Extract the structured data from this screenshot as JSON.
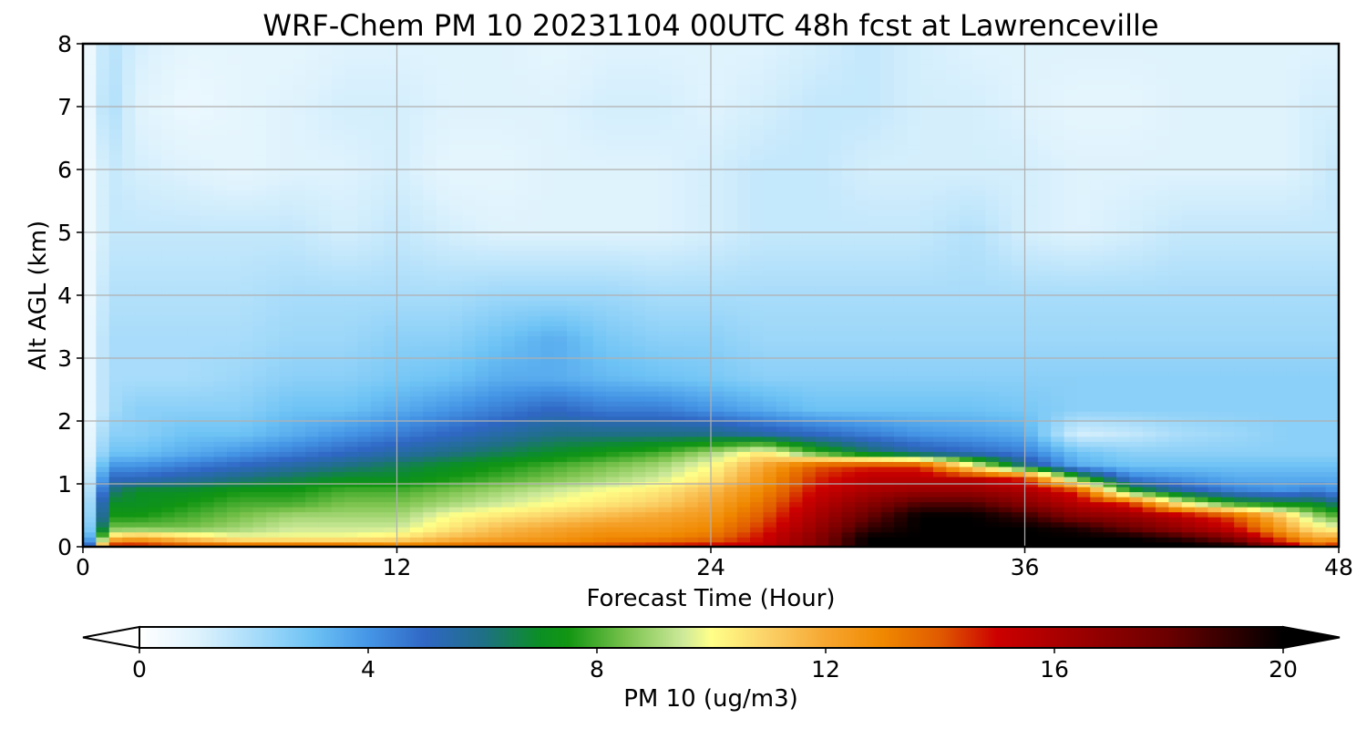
{
  "chart_data": {
    "type": "heatmap",
    "title": "WRF-Chem PM 10  20231104 00UTC 48h fcst at Lawrenceville",
    "xlabel": "Forecast Time (Hour)",
    "ylabel": "Alt AGL (km)",
    "xlim": [
      0,
      48
    ],
    "ylim": [
      0,
      8
    ],
    "xticks": [
      0,
      12,
      24,
      36,
      48
    ],
    "yticks": [
      0,
      1,
      2,
      3,
      4,
      5,
      6,
      7,
      8
    ],
    "grid": true,
    "colorbar": {
      "label": "PM 10  (ug/m3)",
      "range": [
        0,
        20
      ],
      "ticks": [
        0,
        4,
        8,
        12,
        16,
        20
      ],
      "extend": "both",
      "stops": [
        {
          "v": 0,
          "c": "#ffffff"
        },
        {
          "v": 1,
          "c": "#dff3fd"
        },
        {
          "v": 2,
          "c": "#a8dcfa"
        },
        {
          "v": 3,
          "c": "#6ec3f5"
        },
        {
          "v": 4,
          "c": "#4596e6"
        },
        {
          "v": 5,
          "c": "#2f67c4"
        },
        {
          "v": 6,
          "c": "#1f6f86"
        },
        {
          "v": 7,
          "c": "#0b8f24"
        },
        {
          "v": 7.5,
          "c": "#129612"
        },
        {
          "v": 8.5,
          "c": "#79c24c"
        },
        {
          "v": 9.5,
          "c": "#cde99a"
        },
        {
          "v": 10,
          "c": "#ffff88"
        },
        {
          "v": 11,
          "c": "#fbd066"
        },
        {
          "v": 12,
          "c": "#f6a630"
        },
        {
          "v": 13,
          "c": "#f08800"
        },
        {
          "v": 14,
          "c": "#e05a00"
        },
        {
          "v": 15,
          "c": "#cc0000"
        },
        {
          "v": 16,
          "c": "#aa0000"
        },
        {
          "v": 18,
          "c": "#6a0000"
        },
        {
          "v": 20,
          "c": "#000000"
        }
      ]
    },
    "x": [
      0,
      1,
      2,
      4,
      6,
      8,
      10,
      12,
      14,
      16,
      18,
      20,
      22,
      24,
      26,
      28,
      30,
      32,
      34,
      36,
      38,
      40,
      42,
      44,
      46,
      47,
      48
    ],
    "altitudes": [
      0,
      0.05,
      0.15,
      0.3,
      0.5,
      0.7,
      0.9,
      1.1,
      1.3,
      1.5,
      1.8,
      2.2,
      2.7,
      3.3,
      4,
      5,
      6,
      7,
      8
    ],
    "values": [
      [
        2.0,
        15.0,
        16.0,
        16.0,
        16.0,
        16.0,
        16.0,
        16.0,
        16.0,
        16.0,
        16.0,
        16.0,
        16.0,
        16.0,
        16.0,
        17.0,
        20.0,
        20.0,
        20.0,
        20.0,
        20.0,
        20.0,
        20.0,
        20.0,
        18.0,
        16.0,
        16.0
      ],
      [
        1.5,
        14.0,
        14.0,
        13.0,
        12.5,
        12.5,
        12.5,
        12.0,
        12.5,
        13.0,
        13.0,
        13.5,
        14.0,
        14.5,
        15.0,
        17.0,
        20.0,
        20.0,
        20.0,
        20.0,
        20.0,
        20.0,
        20.0,
        19.0,
        15.0,
        13.0,
        14.0
      ],
      [
        1.0,
        11.0,
        12.0,
        11.0,
        10.0,
        10.0,
        10.0,
        10.5,
        11.5,
        12.0,
        12.5,
        13.0,
        13.0,
        13.5,
        15.0,
        17.0,
        20.0,
        20.0,
        20.0,
        20.0,
        20.0,
        20.0,
        19.0,
        17.0,
        13.5,
        12.0,
        12.0
      ],
      [
        0.8,
        8.5,
        8.5,
        8.5,
        9.0,
        9.5,
        9.5,
        9.5,
        10.5,
        11.5,
        12.0,
        12.5,
        12.5,
        13.0,
        14.5,
        16.5,
        19.0,
        20.0,
        20.0,
        20.0,
        19.5,
        18.0,
        16.5,
        15.0,
        12.0,
        10.5,
        10.0
      ],
      [
        0.7,
        7.5,
        7.5,
        8.0,
        8.5,
        9.0,
        9.0,
        9.0,
        10.0,
        10.5,
        11.0,
        11.5,
        12.0,
        12.5,
        14.0,
        16.0,
        18.0,
        20.0,
        20.0,
        19.0,
        17.0,
        16.5,
        15.5,
        14.0,
        11.0,
        9.0,
        8.0
      ],
      [
        0.6,
        7.0,
        7.0,
        7.5,
        8.0,
        8.0,
        8.5,
        8.5,
        9.0,
        9.5,
        10.0,
        10.5,
        11.0,
        12.0,
        13.5,
        15.5,
        17.0,
        18.5,
        18.5,
        17.0,
        15.5,
        14.5,
        10.0,
        7.5,
        7.0,
        7.0,
        6.0
      ],
      [
        0.5,
        6.0,
        7.0,
        7.0,
        7.5,
        7.5,
        8.0,
        8.0,
        8.5,
        9.0,
        9.5,
        10.0,
        10.5,
        11.5,
        13.0,
        15.0,
        16.0,
        16.5,
        16.5,
        16.0,
        14.5,
        7.5,
        5.5,
        4.5,
        4.0,
        4.5,
        4.0
      ],
      [
        0.4,
        5.0,
        5.0,
        5.5,
        6.0,
        6.5,
        7.0,
        7.0,
        7.5,
        8.0,
        8.5,
        9.0,
        9.5,
        10.5,
        12.5,
        14.5,
        15.5,
        15.5,
        15.5,
        14.5,
        8.0,
        4.5,
        4.0,
        3.5,
        3.5,
        3.5,
        3.5
      ],
      [
        0.3,
        4.0,
        4.0,
        4.5,
        5.0,
        5.5,
        6.0,
        6.5,
        7.0,
        7.5,
        8.0,
        8.5,
        9.0,
        10.0,
        12.0,
        14.0,
        14.5,
        14.5,
        10.0,
        6.0,
        3.5,
        3.0,
        3.0,
        3.0,
        3.0,
        3.0,
        3.0
      ],
      [
        0.3,
        3.0,
        3.0,
        3.5,
        4.0,
        4.5,
        5.0,
        5.5,
        6.0,
        6.5,
        7.0,
        7.5,
        8.0,
        9.0,
        10.5,
        8.0,
        6.5,
        5.5,
        5.0,
        4.5,
        3.0,
        2.5,
        2.5,
        2.5,
        2.5,
        2.5,
        2.5
      ],
      [
        0.2,
        2.5,
        2.5,
        3.0,
        3.0,
        3.5,
        4.0,
        4.5,
        5.0,
        5.5,
        6.0,
        6.0,
        6.0,
        6.0,
        5.5,
        5.0,
        4.5,
        4.0,
        3.8,
        3.5,
        1.2,
        1.5,
        2.0,
        2.2,
        2.5,
        2.5,
        2.5
      ],
      [
        0.2,
        2.0,
        2.5,
        2.5,
        2.5,
        3.0,
        3.0,
        3.5,
        4.0,
        4.5,
        5.0,
        4.5,
        4.5,
        4.0,
        3.5,
        3.0,
        3.0,
        3.0,
        3.0,
        2.8,
        2.5,
        2.5,
        2.5,
        2.5,
        2.5,
        2.5,
        2.5
      ],
      [
        0.2,
        2.0,
        2.0,
        2.0,
        2.2,
        2.5,
        2.5,
        2.8,
        3.0,
        3.5,
        3.5,
        3.2,
        3.0,
        2.8,
        2.5,
        2.5,
        2.5,
        2.5,
        2.5,
        2.5,
        2.5,
        2.5,
        2.5,
        2.5,
        2.5,
        2.5,
        2.5
      ],
      [
        0.2,
        2.0,
        2.0,
        2.0,
        2.0,
        2.2,
        2.2,
        2.5,
        2.5,
        3.0,
        3.5,
        2.8,
        2.5,
        2.5,
        2.2,
        2.2,
        2.2,
        2.2,
        2.2,
        2.2,
        2.2,
        2.2,
        2.2,
        2.2,
        2.2,
        2.2,
        2.2
      ],
      [
        0.2,
        1.8,
        1.8,
        1.8,
        1.8,
        2.0,
        2.0,
        2.0,
        2.0,
        2.2,
        2.2,
        2.2,
        2.0,
        2.0,
        2.0,
        2.0,
        2.0,
        2.0,
        2.0,
        2.0,
        2.0,
        2.0,
        2.0,
        2.0,
        2.0,
        2.0,
        2.0
      ],
      [
        0.2,
        1.5,
        1.5,
        1.5,
        1.5,
        1.5,
        1.2,
        1.5,
        1.2,
        1.0,
        1.0,
        1.0,
        1.0,
        1.2,
        1.5,
        1.5,
        1.5,
        1.5,
        1.8,
        1.2,
        1.0,
        1.2,
        1.5,
        1.5,
        1.5,
        1.5,
        1.5
      ],
      [
        0.2,
        1.5,
        1.2,
        1.0,
        0.8,
        1.0,
        1.0,
        1.2,
        0.8,
        0.8,
        1.0,
        1.0,
        1.0,
        1.2,
        1.5,
        1.5,
        1.2,
        1.2,
        1.2,
        1.2,
        1.0,
        1.0,
        1.0,
        1.0,
        1.0,
        1.2,
        1.5
      ],
      [
        0.2,
        2.0,
        1.0,
        0.6,
        0.8,
        1.0,
        1.2,
        1.2,
        1.0,
        1.0,
        1.0,
        1.2,
        1.2,
        1.0,
        1.2,
        1.5,
        1.5,
        1.2,
        1.2,
        1.0,
        0.8,
        0.8,
        1.0,
        1.0,
        1.0,
        1.2,
        1.2
      ],
      [
        0.2,
        1.8,
        1.2,
        0.8,
        0.8,
        0.8,
        1.0,
        1.0,
        1.0,
        1.0,
        0.8,
        1.0,
        1.0,
        1.0,
        1.0,
        1.2,
        1.5,
        1.2,
        1.0,
        1.0,
        1.0,
        1.0,
        1.0,
        1.0,
        1.0,
        1.0,
        1.0
      ]
    ]
  }
}
